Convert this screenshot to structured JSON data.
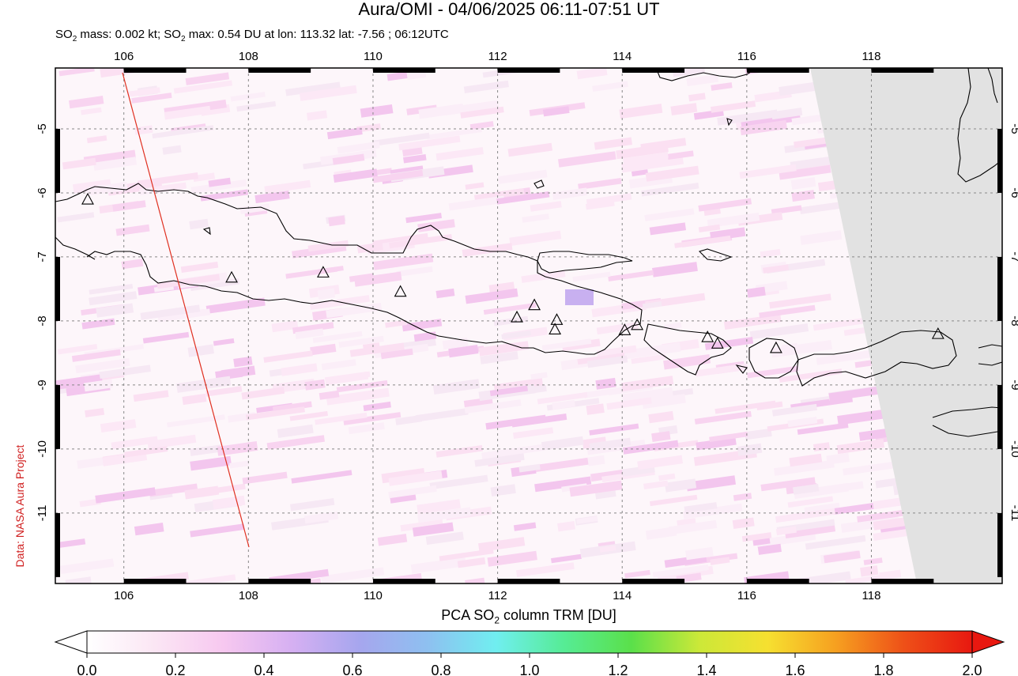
{
  "title": "Aura/OMI - 04/06/2025 06:11-07:51 UT",
  "subtitle": {
    "prefix": "SO",
    "sub": "2",
    "middle": " mass: 0.002 kt; SO",
    "sub2": "2",
    "suffix": " max: 0.54 DU at lon: 113.32 lat: -7.56 ; 06:12UTC"
  },
  "credit": "Data: NASA Aura Project",
  "map": {
    "lon_range": [
      104.9,
      120.1
    ],
    "lat_range": [
      -12.1,
      -4.05
    ],
    "lon_ticks": [
      "106",
      "108",
      "110",
      "112",
      "114",
      "116",
      "118"
    ],
    "lat_ticks": [
      "-5",
      "-6",
      "-7",
      "-8",
      "-9",
      "-10",
      "-11"
    ],
    "gridlines": "dashed",
    "no_data_color": "#e2e2e2",
    "coast_color": "#000000",
    "track_color": "#e03020",
    "volcano_icon": "triangle-outline-icon"
  },
  "colorbar": {
    "title_prefix": "PCA SO",
    "title_sub": "2",
    "title_suffix": " column TRM [DU]",
    "min": 0.0,
    "max": 2.0,
    "tick_labels": [
      "0.0",
      "0.2",
      "0.4",
      "0.6",
      "0.8",
      "1.0",
      "1.2",
      "1.4",
      "1.6",
      "1.8",
      "2.0"
    ],
    "colors": [
      "#ffffff",
      "#fbe6f4",
      "#f7c8f0",
      "#d6b0f2",
      "#a6a6ee",
      "#8ec0f0",
      "#70eef0",
      "#56ec96",
      "#5ae04a",
      "#cce838",
      "#f6e030",
      "#f6a020",
      "#ee5018",
      "#e81810"
    ]
  }
}
